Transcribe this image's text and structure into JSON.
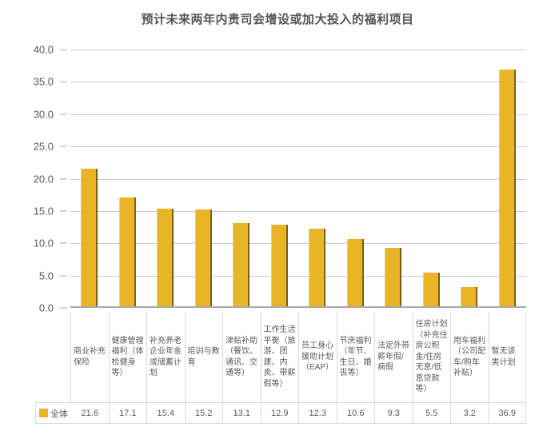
{
  "chart_data": {
    "type": "bar",
    "title": "预计未来两年内贵司会增设或加大投入的福利项目",
    "categories": [
      "商业补充保险",
      "健康管理福利（体检健身等）",
      "补充养老企业年金或储蓄计划",
      "培训与教育",
      "津贴补助（餐饮、通讯、交通等）",
      "工作生活平衡（旅游、团建、内卖、带薪假等）",
      "员工身心援助计划（EAP）",
      "节庆福利（年节、生日、婚丧等）",
      "法定外带薪年假/病假",
      "住房计划（补充住房公积金/住房无息/低息贷款等）",
      "用车福利（公司配车/购车补贴）",
      "暂无该类计划"
    ],
    "series": [
      {
        "name": "全体",
        "values": [
          21.6,
          17.1,
          15.4,
          15.2,
          13.1,
          12.9,
          12.3,
          10.6,
          9.3,
          5.5,
          3.2,
          36.9
        ]
      }
    ],
    "xlabel": "",
    "ylabel": "",
    "ylim": [
      0,
      40
    ],
    "ytick_step": 5,
    "ytick_labels": [
      "40.0",
      "35.0",
      "30.0",
      "25.0",
      "20.0",
      "15.0",
      "10.0",
      "5.0",
      "0.0"
    ],
    "grid": true,
    "legend_position": "bottom-left",
    "bar_color": "#E9B426",
    "colors": {
      "title_text": "#555555",
      "axis_text": "#595959",
      "gridline": "#CBCBCB",
      "baseline": "#A9A9A9",
      "table_border": "#D9D9D9",
      "bar_edge_dark": "#7C6210"
    }
  }
}
